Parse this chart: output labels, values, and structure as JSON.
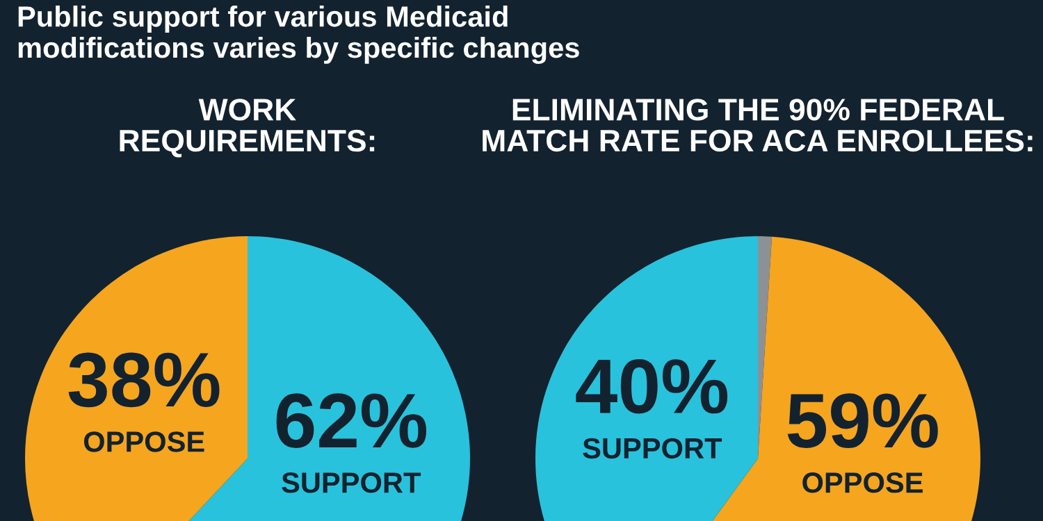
{
  "chart_data": [
    {
      "type": "pie",
      "title": "WORK\nREQUIREMENTS:",
      "annotations": [
        "Public support for various Medicaid\nmodifications varies by specific changes"
      ],
      "categories": [
        "SUPPORT",
        "OPPOSE"
      ],
      "values": [
        62,
        38
      ],
      "colors": [
        "#29c2dc",
        "#f6a51f"
      ],
      "value_labels": [
        "62%",
        "38%"
      ]
    },
    {
      "type": "pie",
      "title": "ELIMINATING THE 90% FEDERAL\nMATCH RATE FOR ACA ENROLLEES:",
      "categories": [
        null,
        "OPPOSE",
        "SUPPORT"
      ],
      "values": [
        1,
        59,
        40
      ],
      "colors": [
        "#8c9196",
        "#f6a51f",
        "#29c2dc"
      ],
      "value_labels": [
        null,
        "59%",
        "40%"
      ]
    }
  ]
}
